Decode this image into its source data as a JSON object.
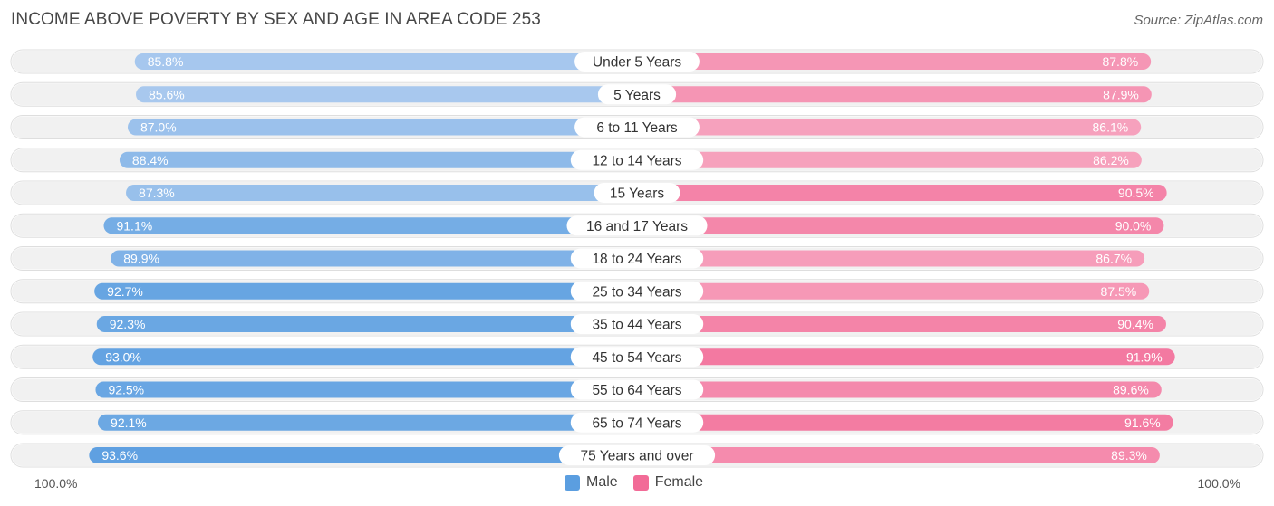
{
  "title": "INCOME ABOVE POVERTY BY SEX AND AGE IN AREA CODE 253",
  "source": "Source: ZipAtlas.com",
  "axis_left_label": "100.0%",
  "axis_right_label": "100.0%",
  "legend": {
    "male": "Male",
    "female": "Female"
  },
  "colors": {
    "male_dark": "#5b9ee0",
    "male_light": "#adcbef",
    "female_dark": "#f26b97",
    "female_light": "#f7a9c2",
    "row_bg": "#f1f1f1"
  },
  "chart_data": {
    "type": "bar",
    "orientation": "horizontal-diverging",
    "title": "INCOME ABOVE POVERTY BY SEX AND AGE IN AREA CODE 253",
    "xlim": [
      0,
      100
    ],
    "categories": [
      "Under 5 Years",
      "5 Years",
      "6 to 11 Years",
      "12 to 14 Years",
      "15 Years",
      "16 and 17 Years",
      "18 to 24 Years",
      "25 to 34 Years",
      "35 to 44 Years",
      "45 to 54 Years",
      "55 to 64 Years",
      "65 to 74 Years",
      "75 Years and over"
    ],
    "series": [
      {
        "name": "Male",
        "values": [
          85.8,
          85.6,
          87.0,
          88.4,
          87.3,
          91.1,
          89.9,
          92.7,
          92.3,
          93.0,
          92.5,
          92.1,
          93.6
        ],
        "labels": [
          "85.8%",
          "85.6%",
          "87.0%",
          "88.4%",
          "87.3%",
          "91.1%",
          "89.9%",
          "92.7%",
          "92.3%",
          "93.0%",
          "92.5%",
          "92.1%",
          "93.6%"
        ]
      },
      {
        "name": "Female",
        "values": [
          87.8,
          87.9,
          86.1,
          86.2,
          90.5,
          90.0,
          86.7,
          87.5,
          90.4,
          91.9,
          89.6,
          91.6,
          89.3
        ],
        "labels": [
          "87.8%",
          "87.9%",
          "86.1%",
          "86.2%",
          "90.5%",
          "90.0%",
          "86.7%",
          "87.5%",
          "90.4%",
          "91.9%",
          "89.6%",
          "91.6%",
          "89.3%"
        ]
      }
    ]
  }
}
